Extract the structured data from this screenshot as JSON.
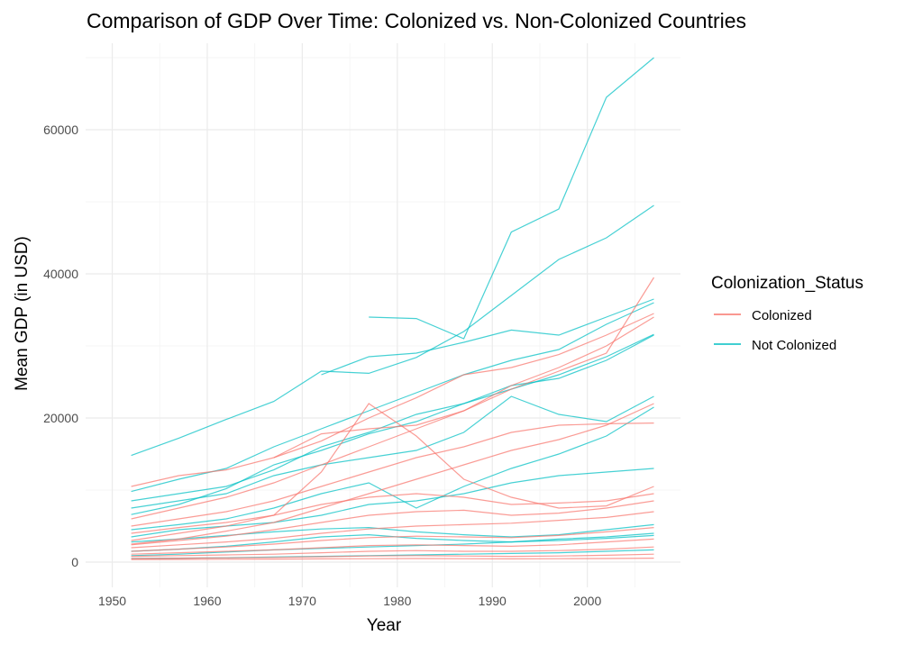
{
  "chart_data": {
    "type": "line",
    "title": "Comparison of GDP Over Time: Colonized vs. Non-Colonized Countries",
    "xlabel": "Year",
    "ylabel": "Mean GDP (in USD)",
    "xlim": [
      1950,
      2007
    ],
    "ylim": [
      0,
      70000
    ],
    "xticks": [
      1950,
      1960,
      1970,
      1980,
      1990,
      2000
    ],
    "yticks": [
      0,
      20000,
      40000,
      60000
    ],
    "grid": true,
    "legend": {
      "title": "Colonization_Status",
      "position": "right",
      "entries": [
        {
          "label": "Colonized",
          "color": "#F8766D"
        },
        {
          "label": "Not Colonized",
          "color": "#00BFC4"
        }
      ]
    },
    "x": [
      1952,
      1957,
      1962,
      1967,
      1972,
      1977,
      1982,
      1987,
      1992,
      1997,
      2002,
      2007
    ],
    "series": [
      {
        "group": "Not Colonized",
        "values": [
          null,
          null,
          null,
          null,
          null,
          34000,
          33800,
          31000,
          45800,
          49000,
          64500,
          70000
        ]
      },
      {
        "group": "Not Colonized",
        "values": [
          14800,
          17200,
          19800,
          22300,
          26500,
          26200,
          28400,
          32000,
          37000,
          42000,
          45000,
          49500
        ]
      },
      {
        "group": "Not Colonized",
        "values": [
          null,
          null,
          null,
          null,
          26000,
          28500,
          29000,
          30500,
          32200,
          31500,
          34000,
          36500
        ]
      },
      {
        "group": "Not Colonized",
        "values": [
          9800,
          11500,
          13000,
          16000,
          18500,
          21000,
          23500,
          26000,
          28000,
          29500,
          33000,
          36000
        ]
      },
      {
        "group": "Not Colonized",
        "values": [
          8500,
          9500,
          10500,
          12800,
          16000,
          18000,
          20500,
          22000,
          24000,
          26000,
          28500,
          31600
        ]
      },
      {
        "group": "Not Colonized",
        "values": [
          6600,
          8000,
          10200,
          13500,
          15500,
          17800,
          19500,
          22000,
          24500,
          25500,
          28000,
          31500
        ]
      },
      {
        "group": "Not Colonized",
        "values": [
          7500,
          8500,
          9500,
          12000,
          13500,
          14500,
          15500,
          18000,
          23000,
          20500,
          19500,
          23000
        ]
      },
      {
        "group": "Not Colonized",
        "values": [
          4500,
          5200,
          6000,
          7500,
          9500,
          11000,
          7500,
          10500,
          13000,
          15000,
          17500,
          21500
        ]
      },
      {
        "group": "Not Colonized",
        "values": [
          3500,
          4500,
          5000,
          5500,
          6500,
          8000,
          8500,
          9500,
          11000,
          12000,
          12500,
          13000
        ]
      },
      {
        "group": "Not Colonized",
        "values": [
          2800,
          3200,
          3700,
          4200,
          4600,
          4800,
          4200,
          3800,
          3500,
          3800,
          4500,
          5200
        ]
      },
      {
        "group": "Not Colonized",
        "values": [
          1500,
          1800,
          2200,
          2800,
          3500,
          3800,
          3300,
          3000,
          2800,
          3200,
          3500,
          4000
        ]
      },
      {
        "group": "Not Colonized",
        "values": [
          900,
          1100,
          1400,
          1700,
          1900,
          2100,
          2300,
          2500,
          2800,
          3000,
          3300,
          3700
        ]
      },
      {
        "group": "Not Colonized",
        "values": [
          500,
          550,
          600,
          700,
          800,
          900,
          1000,
          1100,
          1200,
          1300,
          1500,
          1700
        ]
      },
      {
        "group": "Colonized",
        "values": [
          10500,
          12000,
          12800,
          14500,
          16800,
          20000,
          22800,
          26000,
          27000,
          28800,
          31500,
          34500
        ]
      },
      {
        "group": "Colonized",
        "values": [
          null,
          null,
          null,
          14500,
          17800,
          18500,
          19000,
          21000,
          24000,
          26500,
          29000,
          39500
        ]
      },
      {
        "group": "Colonized",
        "values": [
          6000,
          7500,
          9000,
          11000,
          13500,
          16000,
          18500,
          21000,
          24500,
          27000,
          30000,
          34000
        ]
      },
      {
        "group": "Colonized",
        "values": [
          5000,
          6000,
          7000,
          8500,
          10500,
          12500,
          14500,
          16000,
          18000,
          19000,
          19200,
          19300
        ]
      },
      {
        "group": "Colonized",
        "values": [
          2500,
          3200,
          4300,
          5500,
          7500,
          9500,
          11500,
          13500,
          15500,
          17000,
          19000,
          22000
        ]
      },
      {
        "group": "Colonized",
        "values": [
          3000,
          4000,
          5000,
          6500,
          12500,
          22000,
          17500,
          11500,
          9000,
          7500,
          7800,
          10500
        ]
      },
      {
        "group": "Colonized",
        "values": [
          4000,
          4800,
          5500,
          6500,
          8000,
          9000,
          9500,
          9000,
          8000,
          8200,
          8500,
          9500
        ]
      },
      {
        "group": "Colonized",
        "values": [
          2400,
          3000,
          3600,
          4500,
          5500,
          6500,
          7000,
          7200,
          6500,
          6800,
          7500,
          8500
        ]
      },
      {
        "group": "Colonized",
        "values": [
          2000,
          2400,
          2800,
          3300,
          4000,
          4600,
          5000,
          5200,
          5400,
          5800,
          6200,
          7000
        ]
      },
      {
        "group": "Colonized",
        "values": [
          1500,
          1800,
          2100,
          2500,
          3000,
          3400,
          3600,
          3500,
          3400,
          3700,
          4200,
          4800
        ]
      },
      {
        "group": "Colonized",
        "values": [
          1100,
          1300,
          1500,
          1700,
          2000,
          2300,
          2400,
          2300,
          2200,
          2400,
          2800,
          3200
        ]
      },
      {
        "group": "Colonized",
        "values": [
          800,
          900,
          1000,
          1100,
          1300,
          1500,
          1600,
          1500,
          1500,
          1600,
          1800,
          2100
        ]
      },
      {
        "group": "Colonized",
        "values": [
          500,
          550,
          600,
          650,
          750,
          850,
          900,
          850,
          800,
          850,
          950,
          1100
        ]
      },
      {
        "group": "Colonized",
        "values": [
          350,
          380,
          400,
          420,
          450,
          480,
          500,
          480,
          450,
          470,
          500,
          550
        ]
      }
    ]
  }
}
